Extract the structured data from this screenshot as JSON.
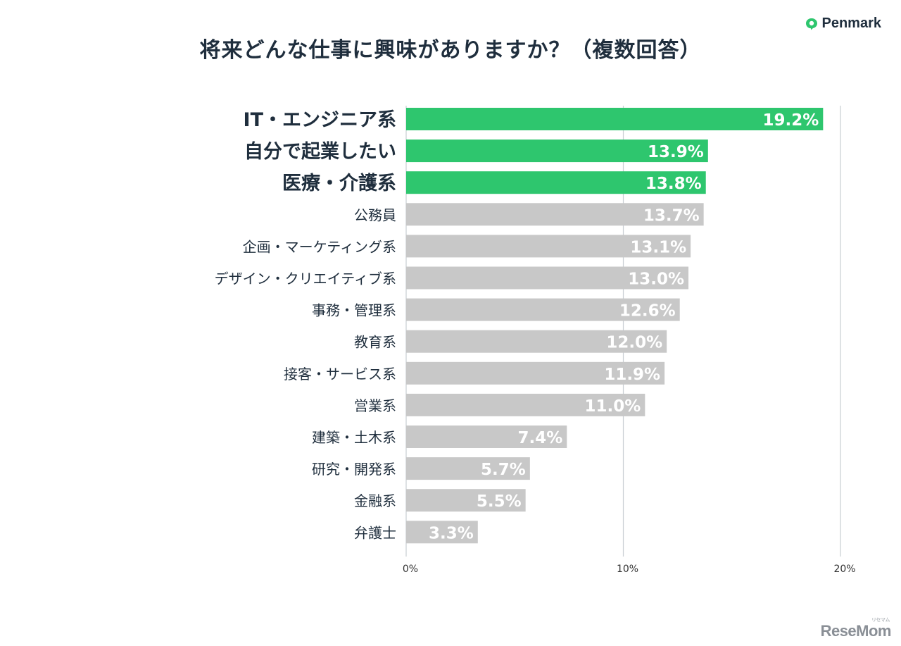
{
  "brand": {
    "name": "Penmark",
    "icon": "chat-bubble-icon"
  },
  "watermark": {
    "text": "ReseMom",
    "sub": "リセマム"
  },
  "colors": {
    "highlight": "#2ec66e",
    "normal": "#c8c8c8",
    "text": "#1f2e3d",
    "grid": "#c9ced3"
  },
  "chart_data": {
    "type": "bar",
    "orientation": "horizontal",
    "title": "将来どんな仕事に興味がありますか？（複数回答）",
    "categories": [
      "IT・エンジニア系",
      "自分で起業したい",
      "医療・介護系",
      "公務員",
      "企画・マーケティング系",
      "デザイン・クリエイティブ系",
      "事務・管理系",
      "教育系",
      "接客・サービス系",
      "営業系",
      "建築・土木系",
      "研究・開発系",
      "金融系",
      "弁護士"
    ],
    "values": [
      19.2,
      13.9,
      13.8,
      13.7,
      13.1,
      13.0,
      12.6,
      12.0,
      11.9,
      11.0,
      7.4,
      5.7,
      5.5,
      3.3
    ],
    "value_labels": [
      "19.2%",
      "13.9%",
      "13.8%",
      "13.7%",
      "13.1%",
      "13.0%",
      "12.6%",
      "12.0%",
      "11.9%",
      "11.0%",
      "7.4%",
      "5.7%",
      "5.5%",
      "3.3%"
    ],
    "highlighted": [
      true,
      true,
      true,
      false,
      false,
      false,
      false,
      false,
      false,
      false,
      false,
      false,
      false,
      false
    ],
    "xlim": [
      0,
      20
    ],
    "ticks": [
      0,
      10,
      20
    ],
    "tick_labels": [
      "0%",
      "10%",
      "20%"
    ],
    "grid": true,
    "xlabel": "",
    "ylabel": ""
  }
}
